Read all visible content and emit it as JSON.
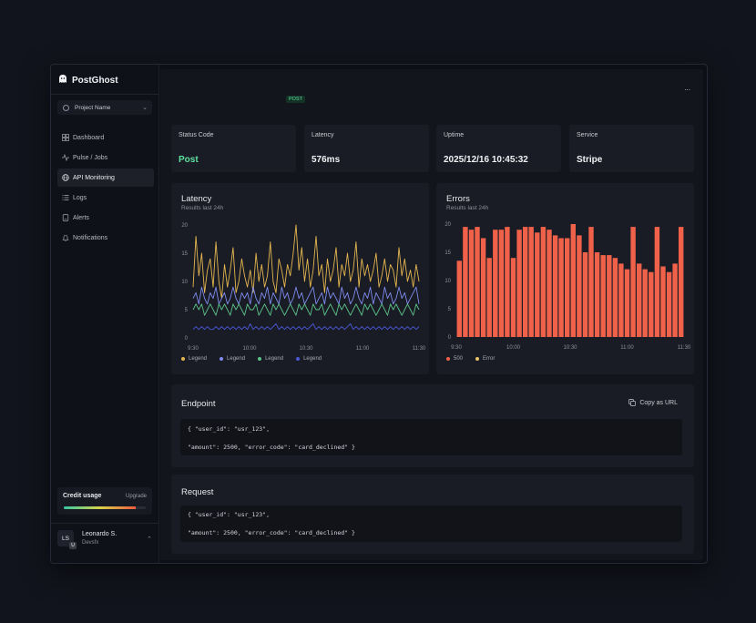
{
  "app": {
    "name": "PostGhost"
  },
  "sidebar": {
    "project": "Project Name",
    "items": [
      {
        "label": "Dashboard",
        "icon": "grid-icon",
        "active": false
      },
      {
        "label": "Pulse / Jobs",
        "icon": "pulse-icon",
        "active": false
      },
      {
        "label": "API Monitoring",
        "icon": "globe-icon",
        "active": true
      },
      {
        "label": "Logs",
        "icon": "list-icon",
        "active": false
      },
      {
        "label": "Alerts",
        "icon": "alert-icon",
        "active": false
      },
      {
        "label": "Notifications",
        "icon": "bell-icon",
        "active": false
      }
    ],
    "credit": {
      "label": "Credit usage",
      "upgrade": "Upgrade",
      "usage_fraction": 0.88
    },
    "user": {
      "initials": "LS",
      "badge": "U",
      "name": "Leonardo S.",
      "org": "Devsfx"
    }
  },
  "header": {
    "method": "POST",
    "more": "..."
  },
  "stats": [
    {
      "title": "Status Code",
      "value": "Post"
    },
    {
      "title": "Latency",
      "value": "576ms"
    },
    {
      "title": "Uptime",
      "value": "2025/12/16 10:45:32"
    },
    {
      "title": "Service",
      "value": "Stripe"
    }
  ],
  "latency": {
    "title": "Latency",
    "subtitle": "Results last 24h"
  },
  "errors": {
    "title": "Errors",
    "subtitle": "Results last 24h"
  },
  "chart_data": [
    {
      "type": "line",
      "title": "Latency",
      "subtitle": "Results last 24h",
      "x_ticks": [
        "9:30",
        "10:00",
        "10:30",
        "11:00",
        "11:30"
      ],
      "y_ticks": [
        "0",
        "5",
        "10",
        "15",
        "20"
      ],
      "ylim": [
        0,
        20
      ],
      "series": [
        {
          "name": "Legend",
          "color": "#e4b64f",
          "values": [
            9,
            18,
            11,
            15,
            8,
            12,
            14,
            9,
            17,
            10,
            7,
            13,
            9,
            12,
            16,
            8,
            10,
            14,
            11,
            9,
            12,
            8,
            15,
            10,
            13,
            9,
            11,
            17,
            10,
            8,
            14,
            12,
            9,
            13,
            11,
            15,
            20,
            12,
            16,
            10,
            14,
            9,
            12,
            18,
            11,
            13,
            8,
            14,
            10,
            12,
            16,
            9,
            13,
            11,
            15,
            10,
            12,
            17,
            9,
            14,
            11,
            13,
            10,
            12,
            15,
            9,
            11,
            14,
            10,
            13,
            12,
            9,
            16,
            11,
            14,
            10,
            12,
            9,
            13,
            10
          ]
        },
        {
          "name": "Legend",
          "color": "#7f8cf0",
          "values": [
            7,
            8,
            6,
            9,
            7,
            6,
            8,
            7,
            9,
            6,
            7,
            8,
            6,
            7,
            9,
            7,
            6,
            8,
            7,
            8,
            6,
            9,
            7,
            6,
            8,
            7,
            9,
            6,
            8,
            7,
            6,
            9,
            7,
            8,
            6,
            7,
            9,
            7,
            8,
            6,
            7,
            8,
            9,
            6,
            7,
            8,
            6,
            9,
            7,
            8,
            7,
            6,
            9,
            7,
            8,
            6,
            7,
            9,
            7,
            6,
            8,
            7,
            9,
            6,
            8,
            7,
            6,
            9,
            7,
            8,
            6,
            7,
            9,
            7,
            8,
            6,
            7,
            8,
            9,
            6
          ]
        },
        {
          "name": "Legend",
          "color": "#5cc48a",
          "values": [
            5,
            6,
            5,
            6,
            4,
            5,
            6,
            5,
            4,
            6,
            5,
            6,
            5,
            4,
            6,
            5,
            6,
            5,
            4,
            6,
            5,
            5,
            6,
            4,
            5,
            6,
            5,
            4,
            6,
            5,
            6,
            5,
            4,
            5,
            6,
            5,
            4,
            6,
            5,
            6,
            5,
            4,
            6,
            5,
            5,
            6,
            4,
            5,
            6,
            5,
            4,
            6,
            5,
            6,
            5,
            4,
            5,
            6,
            5,
            4,
            6,
            5,
            6,
            5,
            4,
            5,
            6,
            5,
            4,
            6,
            5,
            6,
            5,
            4,
            5,
            6,
            5,
            4,
            6,
            5
          ]
        },
        {
          "name": "Legend",
          "color": "#4a58d8",
          "values": [
            1.5,
            2,
            1.5,
            2,
            1.5,
            2,
            1.5,
            1.5,
            2,
            1.5,
            2,
            1.5,
            2,
            1.5,
            2,
            1.5,
            2,
            1.5,
            2,
            1.5,
            2.5,
            1.5,
            2,
            1.5,
            2,
            1.5,
            2,
            1.5,
            2,
            2.5,
            1.5,
            2,
            1.5,
            2,
            1.5,
            2,
            1.5,
            2,
            1.5,
            2,
            1.5,
            2,
            2.5,
            1.5,
            2,
            1.5,
            2,
            1.5,
            2,
            1.5,
            2,
            1.5,
            2,
            1.5,
            2,
            2.5,
            1.5,
            2,
            1.5,
            2,
            1.5,
            2,
            1.5,
            2,
            1.5,
            2,
            1.5,
            2,
            1.5,
            2,
            1.5,
            2,
            1.5,
            2,
            1.5,
            2,
            1.5,
            2,
            1.5,
            2
          ]
        }
      ]
    },
    {
      "type": "bar",
      "title": "Errors",
      "subtitle": "Results last 24h",
      "x_ticks": [
        "9:30",
        "10:00",
        "10:30",
        "11:00",
        "11:30"
      ],
      "y_ticks": [
        "0",
        "5",
        "10",
        "15",
        "20"
      ],
      "ylim": [
        0,
        20
      ],
      "series": [
        {
          "name": "500",
          "color": "#f0614a",
          "values": [
            13.5,
            19.5,
            19,
            19.5,
            17.5,
            14,
            19,
            19,
            19.5,
            14,
            19,
            19.5,
            19.5,
            18.5,
            19.5,
            19,
            18,
            17.5,
            17.5,
            20,
            18,
            15,
            19.5,
            15,
            14.5,
            14.5,
            14,
            13,
            12,
            19.5,
            13,
            12,
            11.5,
            19.5,
            12.5,
            11.5,
            13,
            19.5
          ]
        },
        {
          "name": "Error",
          "color": "#e9c46a",
          "values": []
        }
      ]
    }
  ],
  "endpoint": {
    "title": "Endpoint",
    "copy": "Copy as URL",
    "lines": [
      "{ \"user_id\": \"usr_123\",",
      "\"amount\": 2500, \"error_code\": \"card_declined\" }"
    ]
  },
  "request": {
    "title": "Request",
    "lines": [
      "{ \"user_id\": \"usr_123\",",
      "\"amount\": 2500, \"error_code\": \"card_declined\" }"
    ]
  }
}
